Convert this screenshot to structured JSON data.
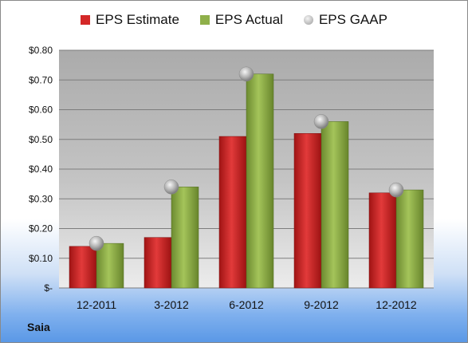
{
  "chart_data": {
    "type": "bar",
    "title": "",
    "xlabel": "",
    "ylabel": "",
    "categories": [
      "12-2011",
      "3-2012",
      "6-2012",
      "9-2012",
      "12-2012"
    ],
    "series": [
      {
        "name": "EPS Estimate",
        "type": "bar",
        "color": "#d42828",
        "values": [
          0.14,
          0.17,
          0.51,
          0.52,
          0.32
        ]
      },
      {
        "name": "EPS Actual",
        "type": "bar",
        "color": "#8fb04a",
        "values": [
          0.15,
          0.34,
          0.72,
          0.56,
          0.33
        ]
      },
      {
        "name": "EPS GAAP",
        "type": "scatter",
        "color": "#b8b8b8",
        "values": [
          0.15,
          0.34,
          0.72,
          0.56,
          0.33
        ]
      }
    ],
    "ylim": [
      0,
      0.8
    ],
    "yticks": [
      0,
      0.1,
      0.2,
      0.3,
      0.4,
      0.5,
      0.6,
      0.7,
      0.8
    ],
    "ytick_labels": [
      "$-",
      "$0.10",
      "$0.20",
      "$0.30",
      "$0.40",
      "$0.50",
      "$0.60",
      "$0.70",
      "$0.80"
    ],
    "grid": true,
    "legend": "top"
  },
  "company": "Saia"
}
